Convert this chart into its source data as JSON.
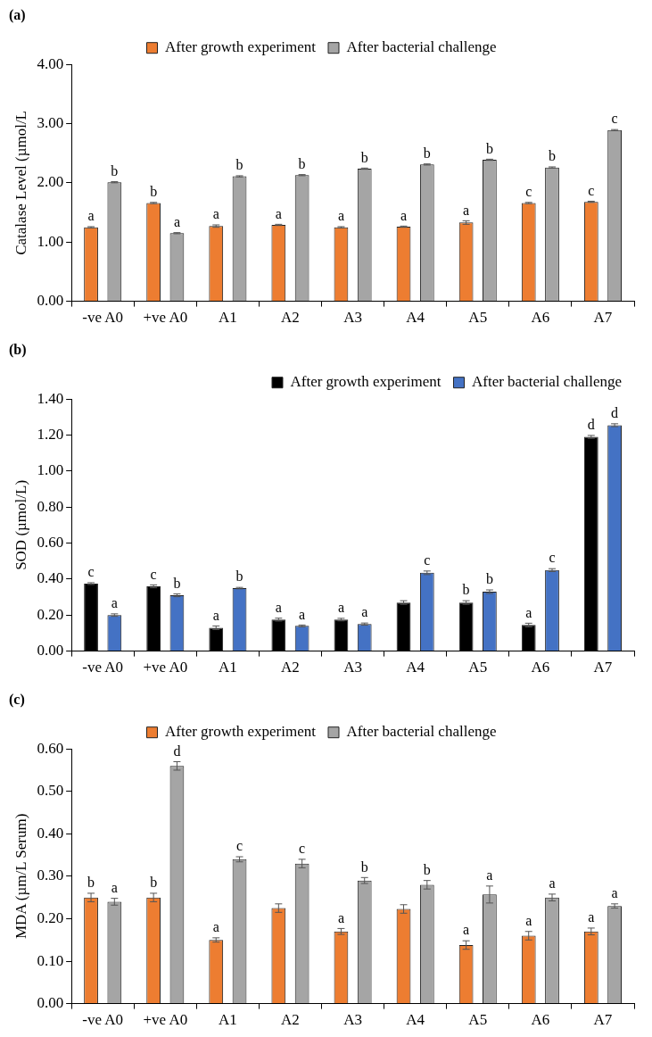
{
  "chart_data": [
    {
      "type": "bar",
      "title": "(a)",
      "ylabel": "Catalase Level (µmol/L",
      "categories": [
        "-ve A0",
        "+ve A0",
        "A1",
        "A2",
        "A3",
        "A4",
        "A5",
        "A6",
        "A7"
      ],
      "series": [
        {
          "name": "After growth experiment",
          "color": "#ed7d31",
          "values": [
            1.25,
            1.66,
            1.27,
            1.29,
            1.25,
            1.26,
            1.33,
            1.66,
            1.68
          ],
          "errors": [
            0.01,
            0.01,
            0.02,
            0.01,
            0.01,
            0.01,
            0.03,
            0.01,
            0.01
          ],
          "value_labels": [
            "a",
            "b",
            "a",
            "a",
            "a",
            "a",
            "a",
            "c",
            "c"
          ]
        },
        {
          "name": "After bacterial challenge",
          "color": "#a5a5a5",
          "values": [
            2.01,
            1.15,
            2.11,
            2.13,
            2.24,
            2.31,
            2.39,
            2.26,
            2.89
          ],
          "errors": [
            0.01,
            0.01,
            0.01,
            0.01,
            0.01,
            0.01,
            0.01,
            0.01,
            0.01
          ],
          "value_labels": [
            "b",
            "a",
            "b",
            "b",
            "b",
            "b",
            "b",
            "b",
            "c"
          ]
        }
      ],
      "ylim": [
        0,
        4
      ],
      "yticks": [
        {
          "value": 0,
          "label": "0.00"
        },
        {
          "value": 1,
          "label": "1.00"
        },
        {
          "value": 2,
          "label": "2.00"
        },
        {
          "value": 3,
          "label": "3.00"
        },
        {
          "value": 4,
          "label": "4.00"
        }
      ],
      "grid": false,
      "legend": "top"
    },
    {
      "type": "bar",
      "title": "(b)",
      "ylabel": "SOD (µmol/L)",
      "categories": [
        "-ve A0",
        "+ve A0",
        "A1",
        "A2",
        "A3",
        "A4",
        "A5",
        "A6",
        "A7"
      ],
      "series": [
        {
          "name": "After growth experiment",
          "color": "#000000",
          "values": [
            0.375,
            0.36,
            0.13,
            0.175,
            0.175,
            0.27,
            0.27,
            0.145,
            1.19
          ],
          "errors": [
            0.005,
            0.008,
            0.01,
            0.008,
            0.007,
            0.01,
            0.01,
            0.01,
            0.008
          ],
          "value_labels": [
            "c",
            "c",
            "a",
            "a",
            "a",
            null,
            "b",
            "a",
            "d"
          ]
        },
        {
          "name": "After bacterial challenge",
          "color": "#4472c4",
          "values": [
            0.2,
            0.31,
            0.35,
            0.14,
            0.15,
            0.435,
            0.33,
            0.45,
            1.255
          ],
          "errors": [
            0.007,
            0.008,
            0.004,
            0.005,
            0.006,
            0.01,
            0.01,
            0.008,
            0.008
          ],
          "value_labels": [
            "a",
            "b",
            "b",
            "a",
            "a",
            "c",
            "b",
            "c",
            "d"
          ]
        }
      ],
      "ylim": [
        0,
        1.4
      ],
      "yticks": [
        {
          "value": 0,
          "label": "0.00"
        },
        {
          "value": 0.2,
          "label": "0.20"
        },
        {
          "value": 0.4,
          "label": "0.40"
        },
        {
          "value": 0.6,
          "label": "0.60"
        },
        {
          "value": 0.8,
          "label": "0.80"
        },
        {
          "value": 1,
          "label": "1.00"
        },
        {
          "value": 1.2,
          "label": "1.20"
        },
        {
          "value": 1.4,
          "label": "1.40"
        }
      ],
      "grid": false,
      "legend": "top right"
    },
    {
      "type": "bar",
      "title": "(c)",
      "ylabel": "MDA (µm/L Serum)",
      "categories": [
        "-ve A0",
        "+ve A0",
        "A1",
        "A2",
        "A3",
        "A4",
        "A5",
        "A6",
        "A7"
      ],
      "series": [
        {
          "name": "After growth experiment",
          "color": "#ed7d31",
          "values": [
            0.25,
            0.25,
            0.15,
            0.225,
            0.17,
            0.223,
            0.138,
            0.16,
            0.17
          ],
          "errors": [
            0.01,
            0.01,
            0.005,
            0.01,
            0.007,
            0.01,
            0.01,
            0.01,
            0.008
          ],
          "value_labels": [
            "b",
            "b",
            "a",
            null,
            "a",
            null,
            "a",
            "a",
            "a"
          ]
        },
        {
          "name": "After bacterial challenge",
          "color": "#a5a5a5",
          "values": [
            0.24,
            0.56,
            0.34,
            0.33,
            0.29,
            0.28,
            0.257,
            0.25,
            0.23
          ],
          "errors": [
            0.008,
            0.01,
            0.006,
            0.01,
            0.007,
            0.01,
            0.02,
            0.008,
            0.005
          ],
          "value_labels": [
            "a",
            "d",
            "c",
            "c",
            "b",
            "b",
            "a",
            "a",
            "a"
          ]
        }
      ],
      "ylim": [
        0,
        0.6
      ],
      "yticks": [
        {
          "value": 0,
          "label": "0.00"
        },
        {
          "value": 0.1,
          "label": "0.10"
        },
        {
          "value": 0.2,
          "label": "0.20"
        },
        {
          "value": 0.3,
          "label": "0.30"
        },
        {
          "value": 0.4,
          "label": "0.40"
        },
        {
          "value": 0.5,
          "label": "0.50"
        },
        {
          "value": 0.6,
          "label": "0.60"
        }
      ],
      "grid": false,
      "legend": "top"
    }
  ]
}
